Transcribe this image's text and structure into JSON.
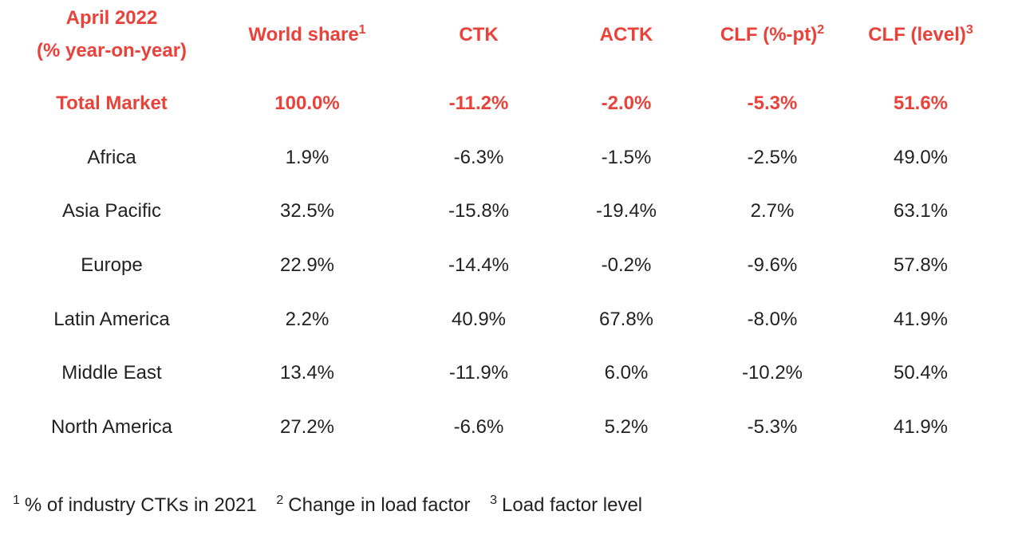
{
  "chart_data": {
    "type": "table",
    "title": "",
    "header": {
      "period_line1": "April 2022",
      "period_line2": "(% year-on-year)",
      "columns": [
        {
          "label": "World share",
          "note": "1"
        },
        {
          "label": "CTK",
          "note": ""
        },
        {
          "label": "ACTK",
          "note": ""
        },
        {
          "label": "CLF (%-pt)",
          "note": "2"
        },
        {
          "label": "CLF (level)",
          "note": "3"
        }
      ]
    },
    "rows": [
      {
        "region": "Total Market",
        "world_share": "100.0%",
        "ctk": "-11.2%",
        "actk": "-2.0%",
        "clf_pt": "-5.3%",
        "clf_level": "51.6%"
      },
      {
        "region": "Africa",
        "world_share": "1.9%",
        "ctk": "-6.3%",
        "actk": "-1.5%",
        "clf_pt": "-2.5%",
        "clf_level": "49.0%"
      },
      {
        "region": "Asia Pacific",
        "world_share": "32.5%",
        "ctk": "-15.8%",
        "actk": "-19.4%",
        "clf_pt": "2.7%",
        "clf_level": "63.1%"
      },
      {
        "region": "Europe",
        "world_share": "22.9%",
        "ctk": "-14.4%",
        "actk": "-0.2%",
        "clf_pt": "-9.6%",
        "clf_level": "57.8%"
      },
      {
        "region": "Latin America",
        "world_share": "2.2%",
        "ctk": "40.9%",
        "actk": "67.8%",
        "clf_pt": "-8.0%",
        "clf_level": "41.9%"
      },
      {
        "region": "Middle East",
        "world_share": "13.4%",
        "ctk": "-11.9%",
        "actk": "6.0%",
        "clf_pt": "-10.2%",
        "clf_level": "50.4%"
      },
      {
        "region": "North America",
        "world_share": "27.2%",
        "ctk": "-6.6%",
        "actk": "5.2%",
        "clf_pt": "-5.3%",
        "clf_level": "41.9%"
      }
    ],
    "footnotes": [
      {
        "mark": "1",
        "text": "% of industry CTKs in 2021"
      },
      {
        "mark": "2",
        "text": "Change in load factor"
      },
      {
        "mark": "3",
        "text": "Load factor level"
      }
    ]
  },
  "colors": {
    "accent": "#e8423a",
    "text": "#222222",
    "background": "#ffffff"
  }
}
